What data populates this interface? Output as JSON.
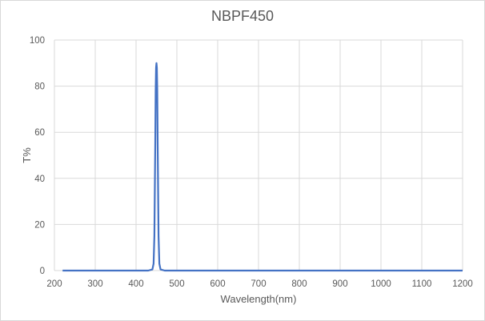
{
  "chart_data": {
    "type": "line",
    "title": "NBPF450",
    "xlabel": "Wavelength(nm)",
    "ylabel": "T%",
    "xlim": [
      200,
      1200
    ],
    "ylim": [
      0,
      100
    ],
    "x_ticks": [
      200,
      300,
      400,
      500,
      600,
      700,
      800,
      900,
      1000,
      1100,
      1200
    ],
    "y_ticks": [
      0,
      20,
      40,
      60,
      80,
      100
    ],
    "grid": true,
    "legend": "none",
    "series": [
      {
        "name": "NBPF450",
        "color": "#4472c4",
        "x": [
          220,
          300,
          400,
          430,
          440,
          443,
          445,
          447,
          448,
          449,
          450,
          451,
          452,
          453,
          455,
          457,
          460,
          470,
          500,
          600,
          700,
          800,
          900,
          1000,
          1100,
          1200
        ],
        "y": [
          0,
          0,
          0,
          0,
          0.5,
          3,
          15,
          55,
          78,
          88,
          90,
          88,
          78,
          55,
          15,
          3,
          0.5,
          0,
          0,
          0,
          0,
          0,
          0,
          0,
          0,
          0
        ]
      }
    ]
  }
}
